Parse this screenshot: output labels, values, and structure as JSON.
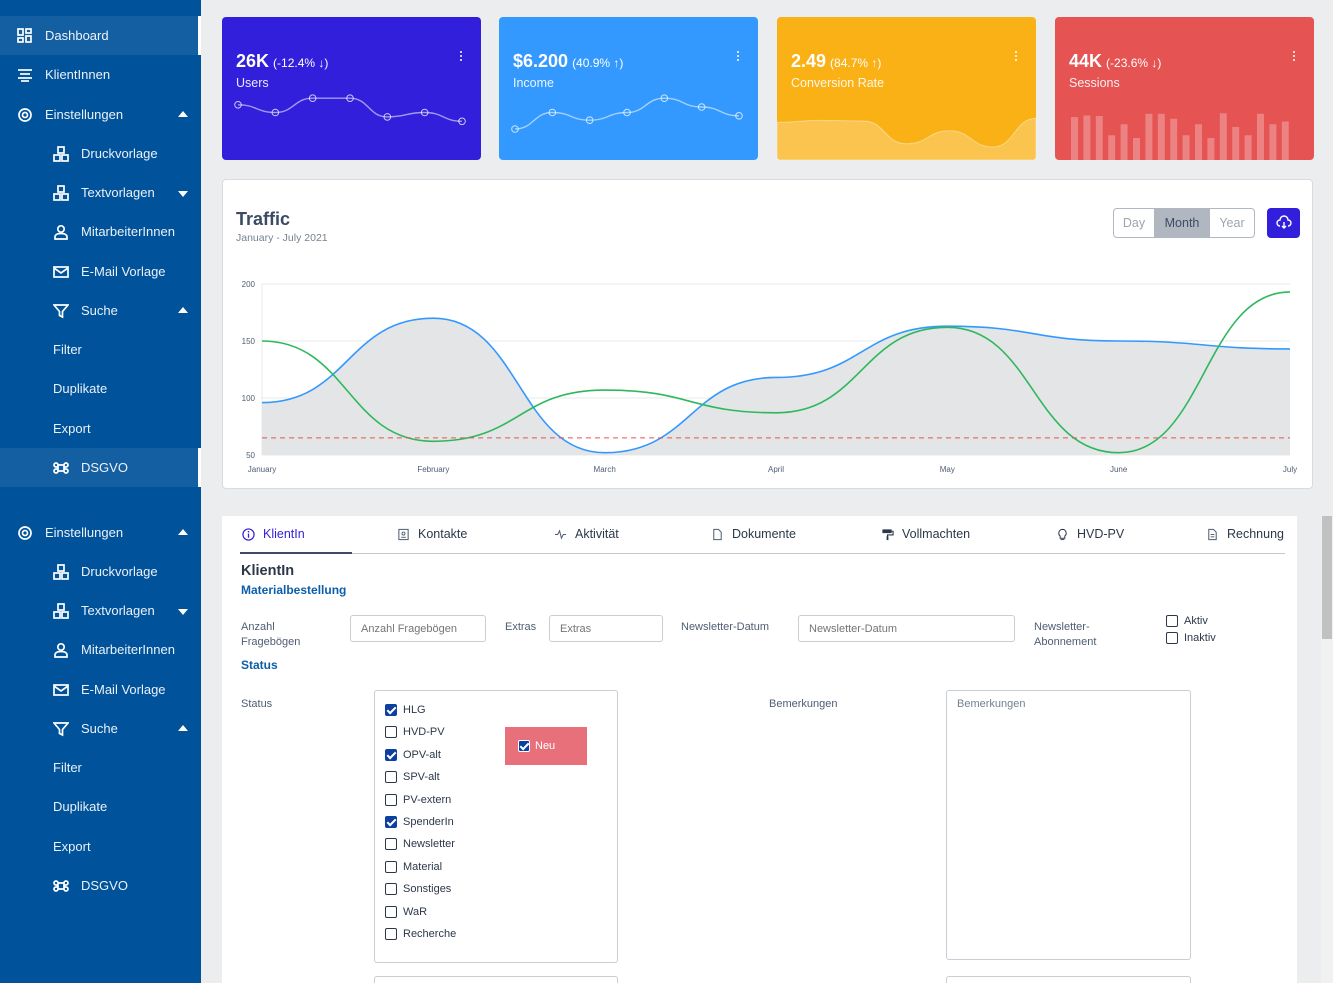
{
  "sidebar": {
    "group1": {
      "dashboard": "Dashboard",
      "klienten": "KlientInnen",
      "einstellungen": "Einstellungen",
      "druckvorlage": "Druckvorlage",
      "textvorlagen": "Textvorlagen",
      "mitarbeiter": "MitarbeiterInnen",
      "email": "E-Mail Vorlage",
      "suche": "Suche",
      "filter": "Filter",
      "duplikate": "Duplikate",
      "export": "Export",
      "dsgvo": "DSGVO"
    },
    "group2": {
      "einstellungen": "Einstellungen",
      "druckvorlage": "Druckvorlage",
      "textvorlagen": "Textvorlagen",
      "mitarbeiter": "MitarbeiterInnen",
      "email": "E-Mail Vorlage",
      "suche": "Suche",
      "filter": "Filter",
      "duplikate": "Duplikate",
      "export": "Export",
      "dsgvo": "DSGVO"
    }
  },
  "cards": [
    {
      "value": "26K",
      "change": "(-12.4% ↓)",
      "label": "Users",
      "color": "#321fdb",
      "sparkline": [
        62,
        55,
        68,
        68,
        51,
        55,
        47
      ]
    },
    {
      "value": "$6.200",
      "change": "(40.9% ↑)",
      "label": "Income",
      "color": "#3399ff",
      "sparkline": [
        40,
        55,
        48,
        55,
        68,
        60,
        52
      ]
    },
    {
      "value": "2.49",
      "change": "(84.7% ↑)",
      "label": "Conversion Rate",
      "color": "#f9b115",
      "area": [
        78,
        81,
        80,
        45,
        65,
        40,
        84
      ]
    },
    {
      "value": "44K",
      "change": "(-23.6% ↓)",
      "label": "Sessions",
      "color": "#e55353",
      "bars": [
        78,
        81,
        80,
        45,
        65,
        40,
        84,
        84,
        75,
        45,
        65,
        40,
        85,
        60,
        45,
        84,
        65,
        70
      ]
    }
  ],
  "traffic": {
    "title": "Traffic",
    "subtitle": "January - July 2021",
    "range_buttons": [
      "Day",
      "Month",
      "Year"
    ],
    "selected_range": "Month"
  },
  "chart_data": {
    "type": "line",
    "x": [
      "January",
      "February",
      "March",
      "April",
      "May",
      "June",
      "July"
    ],
    "ylim": [
      50,
      200
    ],
    "yticks": [
      50,
      100,
      150,
      200
    ],
    "series": [
      {
        "values": [
          96,
          170,
          52,
          118,
          163,
          150,
          143
        ],
        "color": "#3399ff",
        "fill": "#e4e5e6"
      },
      {
        "values": [
          150,
          62,
          107,
          87,
          162,
          52,
          193
        ],
        "color": "#2eb85c"
      },
      {
        "values": [
          65,
          65,
          65,
          65,
          65,
          65,
          65
        ],
        "color": "#e55353",
        "dashed": true
      }
    ],
    "grid": true,
    "legend": "none"
  },
  "tabs": [
    "KlientIn",
    "Kontakte",
    "Aktivität",
    "Dokumente",
    "Vollmachten",
    "HVD-PV",
    "Rechnung"
  ],
  "form": {
    "heading": "KlientIn",
    "section1": "Materialbestellung",
    "section2": "Status",
    "anzahl_label": "Anzahl Fragebögen",
    "anzahl_placeholder": "Anzahl Fragebögen",
    "extras_label": "Extras",
    "extras_placeholder": "Extras",
    "newsletter_datum_label": "Newsletter-Datum",
    "newsletter_datum_placeholder": "Newsletter-Datum",
    "newsletter_abo_label": "Newsletter-Abonnement",
    "abo_options": [
      {
        "label": "Aktiv",
        "checked": false
      },
      {
        "label": "Inaktiv",
        "checked": false
      }
    ],
    "status_label": "Status",
    "status_options": [
      {
        "label": "HLG",
        "checked": true
      },
      {
        "label": "HVD-PV",
        "checked": false
      },
      {
        "label": "OPV-alt",
        "checked": true
      },
      {
        "label": "SPV-alt",
        "checked": false
      },
      {
        "label": "PV-extern",
        "checked": false
      },
      {
        "label": "SpenderIn",
        "checked": true
      },
      {
        "label": "Newsletter",
        "checked": false
      },
      {
        "label": "Material",
        "checked": false
      },
      {
        "label": "Sonstiges",
        "checked": false
      },
      {
        "label": "WaR",
        "checked": false
      },
      {
        "label": "Recherche",
        "checked": false
      }
    ],
    "neu_label": "Neu",
    "neu_checked": true,
    "bemerkungen_label": "Bemerkungen",
    "bemerkungen_placeholder": "Bemerkungen"
  }
}
